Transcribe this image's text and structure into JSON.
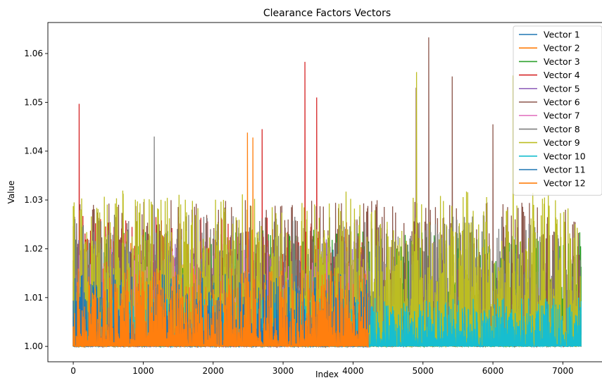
{
  "chart_data": {
    "type": "line",
    "title": "Clearance Factors Vectors",
    "xlabel": "Index",
    "ylabel": "Value",
    "xlim": [
      -363,
      7620
    ],
    "ylim": [
      0.99685,
      1.06635
    ],
    "xticks": [
      0,
      1000,
      2000,
      3000,
      4000,
      5000,
      6000,
      7000
    ],
    "yticks": [
      1.0,
      1.01,
      1.02,
      1.03,
      1.04,
      1.05,
      1.06
    ],
    "ytick_labels": [
      "1.00",
      "1.01",
      "1.02",
      "1.03",
      "1.04",
      "1.05",
      "1.06"
    ],
    "grid": false,
    "legend_position": "top-right",
    "series": [
      {
        "name": "Vector 1",
        "color": "#1f77b4",
        "length": 4220,
        "baseline": 1.0,
        "typical_max": 1.02,
        "max": 1.029
      },
      {
        "name": "Vector 2",
        "color": "#ff7f0e",
        "length": 4220,
        "baseline": 1.0,
        "typical_max": 1.022,
        "max": 1.0295
      },
      {
        "name": "Vector 3",
        "color": "#2ca02c",
        "length": 7260,
        "baseline": 1.0,
        "typical_max": 1.024,
        "max": 1.0355
      },
      {
        "name": "Vector 4",
        "color": "#d62728",
        "length": 4220,
        "baseline": 1.0,
        "typical_max": 1.027,
        "max": 1.0583,
        "peaks": [
          [
            85,
            1.0497
          ],
          [
            3310,
            1.0583
          ],
          [
            3480,
            1.051
          ],
          [
            2700,
            1.0445
          ]
        ]
      },
      {
        "name": "Vector 5",
        "color": "#9467bd",
        "length": 4220,
        "baseline": 1.0,
        "typical_max": 1.022,
        "max": 1.0325
      },
      {
        "name": "Vector 6",
        "color": "#8c564b",
        "length": 7260,
        "baseline": 1.0,
        "typical_max": 1.03,
        "max": 1.0633,
        "peaks": [
          [
            5080,
            1.0633
          ],
          [
            5420,
            1.0553
          ],
          [
            6000,
            1.0455
          ],
          [
            4900,
            1.053
          ]
        ]
      },
      {
        "name": "Vector 7",
        "color": "#e377c2",
        "length": 4220,
        "baseline": 1.0,
        "typical_max": 1.02,
        "max": 1.028
      },
      {
        "name": "Vector 8",
        "color": "#7f7f7f",
        "length": 7260,
        "baseline": 1.0,
        "typical_max": 1.027,
        "max": 1.043,
        "peaks": [
          [
            1160,
            1.043
          ]
        ]
      },
      {
        "name": "Vector 9",
        "color": "#bcbd22",
        "length": 7260,
        "baseline": 1.0,
        "typical_max": 1.032,
        "max": 1.0562,
        "peaks": [
          [
            4910,
            1.0562
          ],
          [
            6290,
            1.0555
          ]
        ]
      },
      {
        "name": "Vector 10",
        "color": "#17becf",
        "length": 7260,
        "baseline": 1.0,
        "typical_max": 1.01,
        "max": 1.0175
      },
      {
        "name": "Vector 11",
        "color": "#1f77b4",
        "length": 4220,
        "baseline": 1.0,
        "typical_max": 1.015,
        "max": 1.02
      },
      {
        "name": "Vector 12",
        "color": "#ff7f0e",
        "length": 4220,
        "baseline": 1.0,
        "typical_max": 1.016,
        "max": 1.0438,
        "peaks": [
          [
            2490,
            1.0438
          ],
          [
            2570,
            1.0428
          ]
        ]
      }
    ]
  }
}
